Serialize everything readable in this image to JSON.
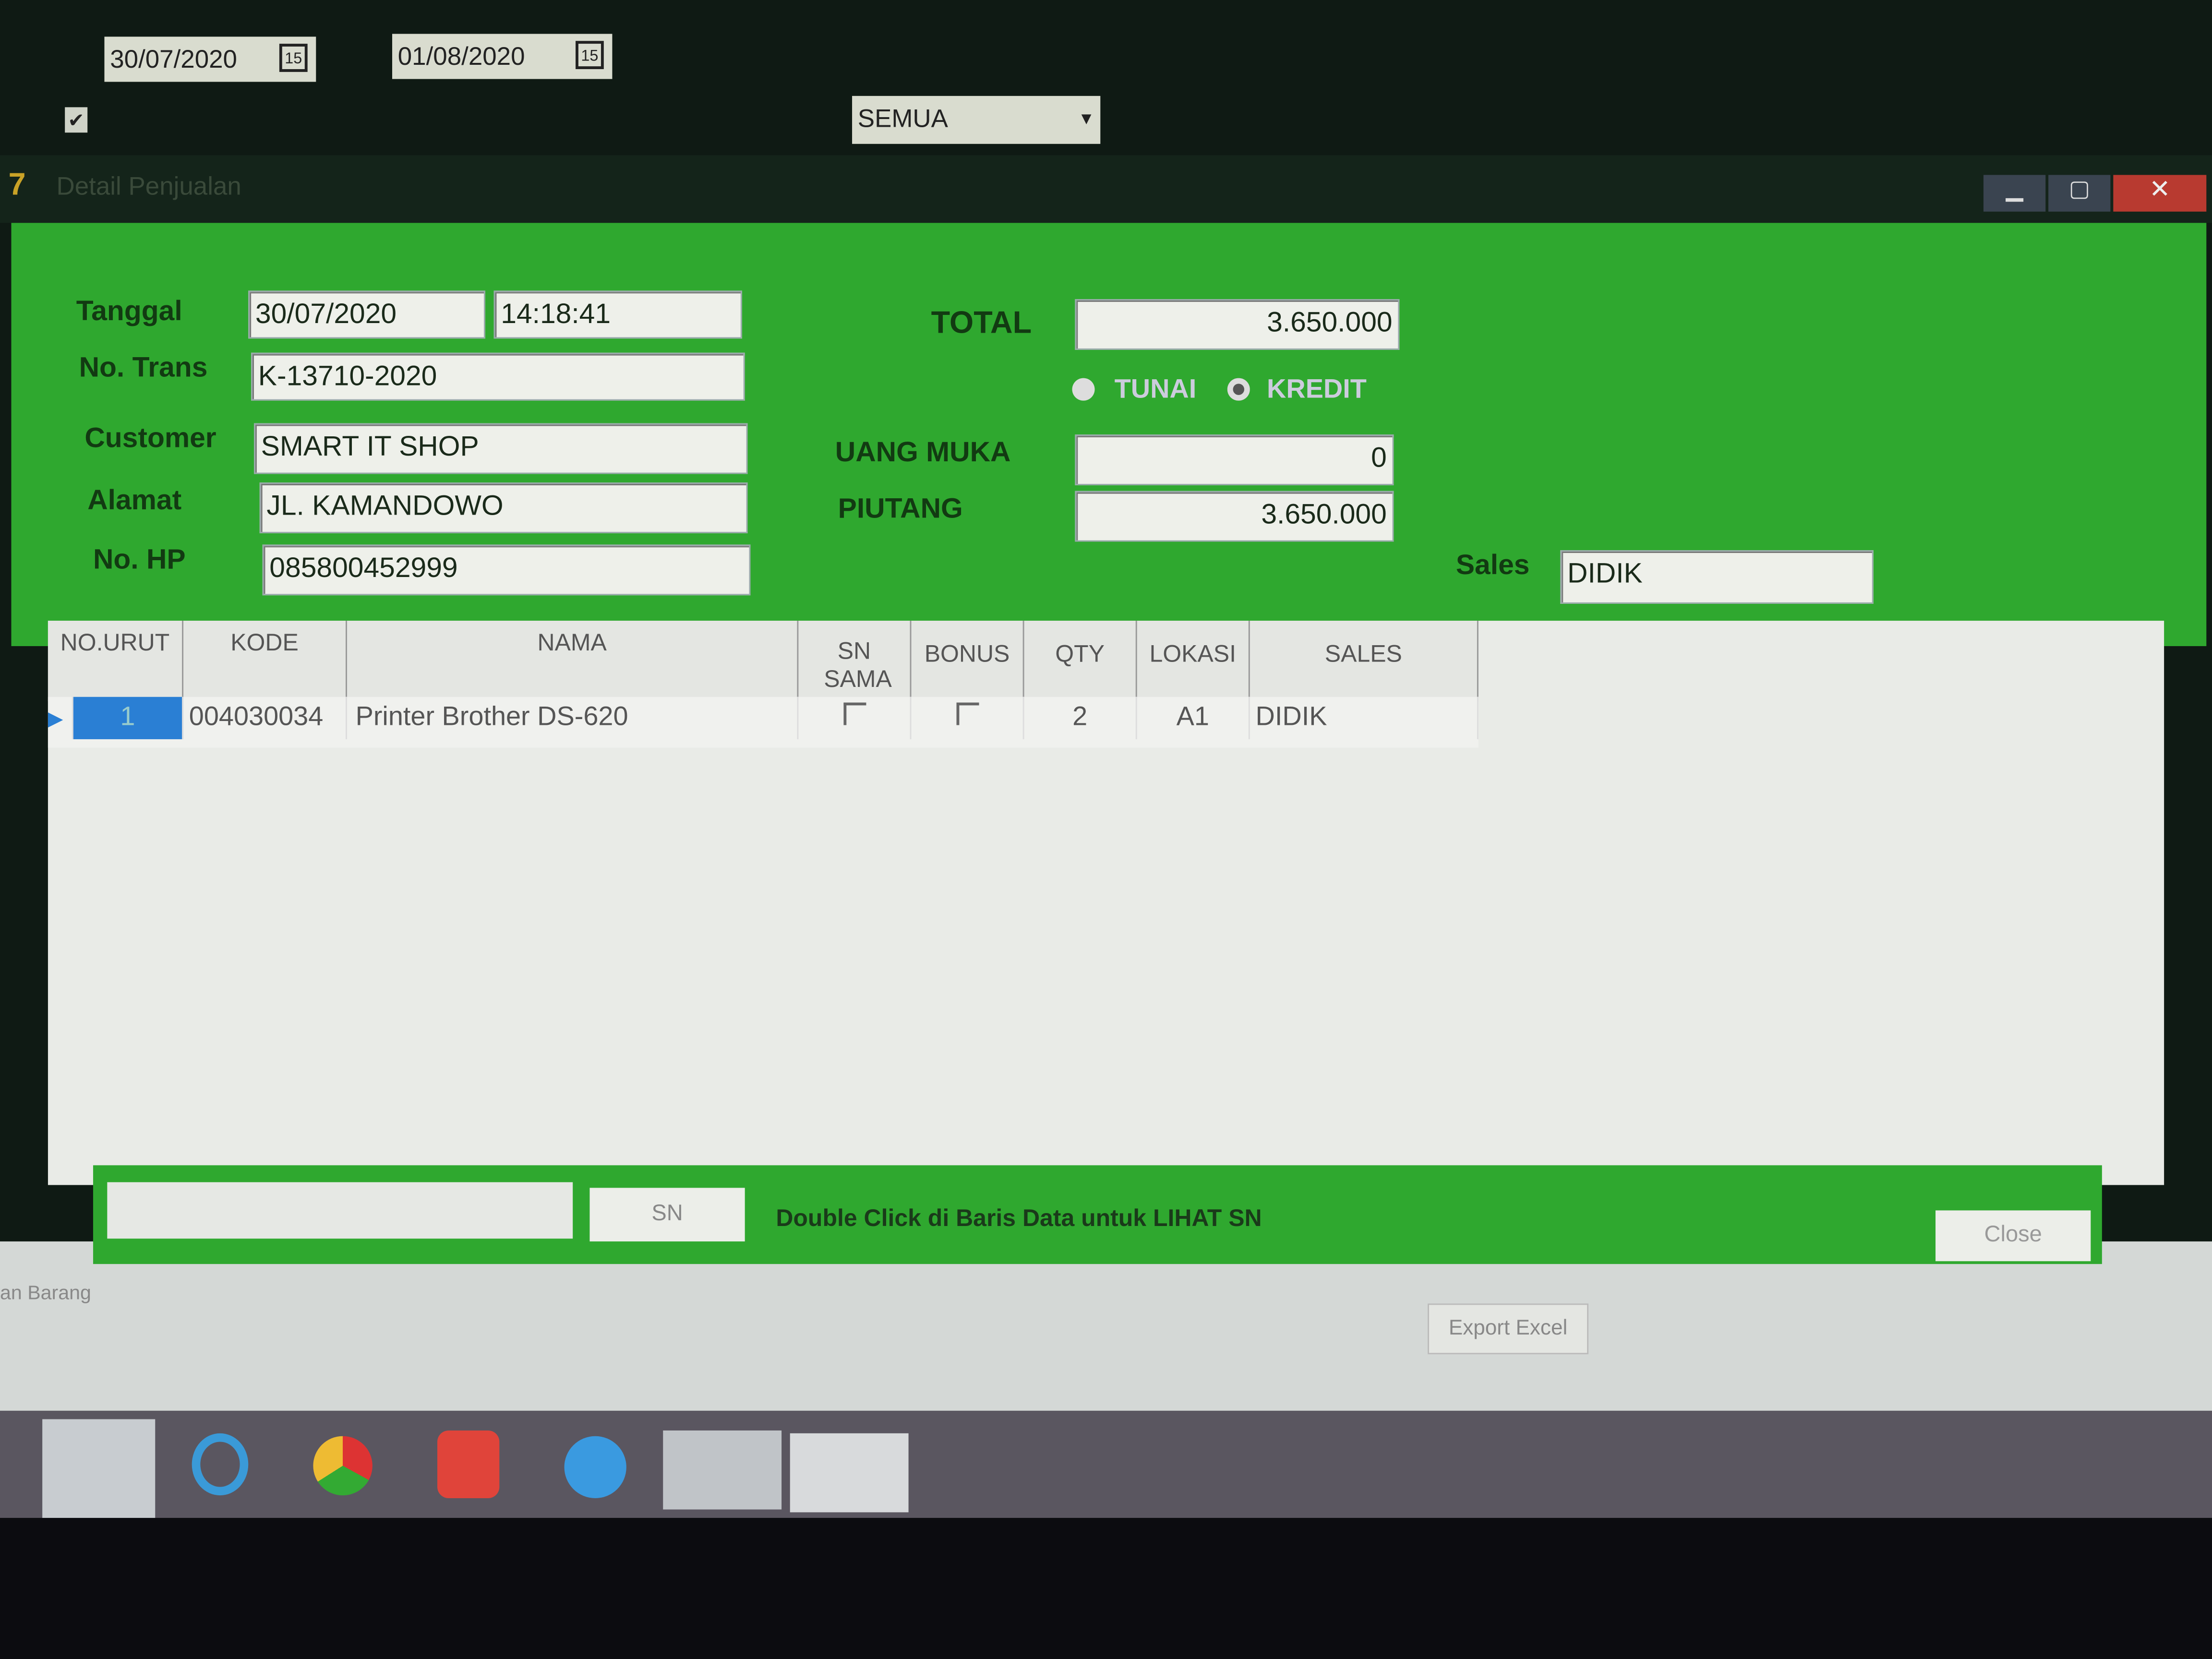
{
  "background_form": {
    "date_from": "30/07/2020",
    "date_to": "01/08/2020",
    "calendar_icon_label": "15",
    "checkbox_checked": true,
    "filter_select": "SEMUA",
    "left_tab_label": "an Barang",
    "export_button": "Export Excel"
  },
  "dialog": {
    "title": "Detail Penjualan",
    "header": {
      "tanggal_label": "Tanggal",
      "tanggal": "30/07/2020",
      "time": "14:18:41",
      "no_trans_label": "No. Trans",
      "no_trans": "K-13710-2020",
      "customer_label": "Customer",
      "customer": "SMART IT SHOP",
      "alamat_label": "Alamat",
      "alamat": "JL. KAMANDOWO",
      "no_hp_label": "No. HP",
      "no_hp": "085800452999",
      "total_label": "TOTAL",
      "total": "3.650.000",
      "payment_options": [
        "TUNAI",
        "KREDIT"
      ],
      "payment_selected": "KREDIT",
      "uang_muka_label": "UANG MUKA",
      "uang_muka": "0",
      "piutang_label": "PIUTANG",
      "piutang": "3.650.000",
      "sales_label": "Sales",
      "sales": "DIDIK"
    },
    "table": {
      "columns": [
        "NO.URUT",
        "KODE",
        "NAMA",
        "SN SAMA",
        "BONUS",
        "QTY",
        "LOKASI",
        "SALES"
      ],
      "rows": [
        {
          "no_urut": "1",
          "kode": "004030034",
          "nama": "Printer Brother DS-620",
          "sn_sama": false,
          "bonus": false,
          "qty": "2",
          "lokasi": "A1",
          "sales": "DIDIK"
        }
      ]
    },
    "footer": {
      "sn_button": "SN",
      "hint": "Double Click di Baris Data untuk LIHAT SN",
      "close_button": "Close"
    }
  },
  "colors": {
    "dialog_green": "#2fa82f",
    "selection_blue": "#2a7fd4",
    "dark_bg": "#0f1a14"
  },
  "taskbar": {
    "icons": [
      "file-explorer-icon",
      "internet-explorer-icon",
      "chrome-icon",
      "app-red-icon",
      "app-blue-icon",
      "document-icon",
      "window-app-icon"
    ]
  }
}
